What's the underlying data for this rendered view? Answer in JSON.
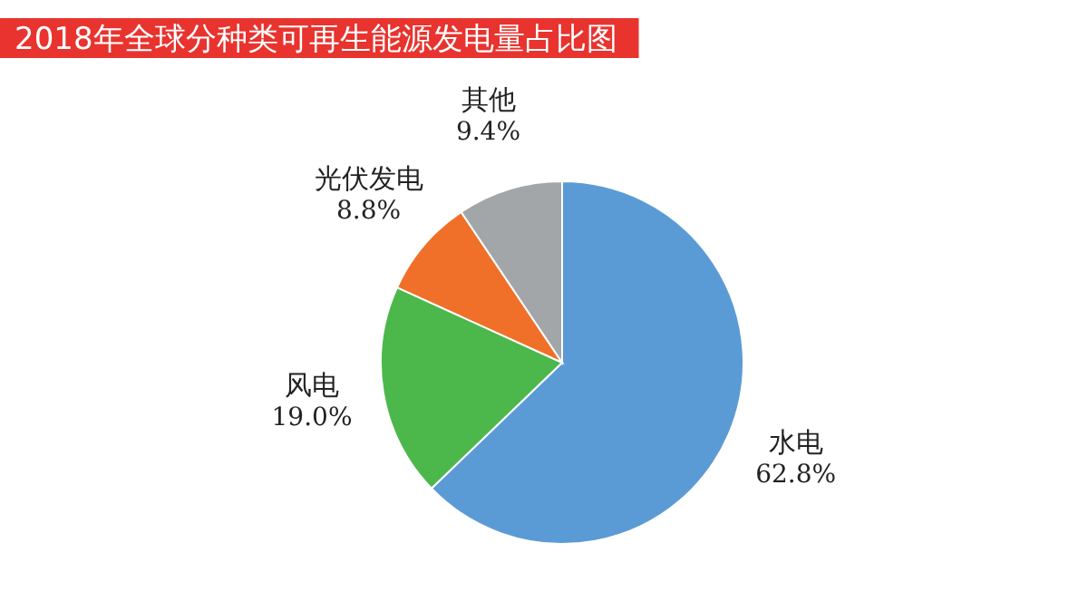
{
  "chart_data": {
    "type": "pie",
    "title": "2018年全球分种类可再生能源发电量占比图",
    "categories": [
      "水电",
      "风电",
      "光伏发电",
      "其他"
    ],
    "values": [
      62.8,
      19.0,
      8.8,
      9.4
    ],
    "value_labels": [
      "62.8%",
      "19.0%",
      "8.8%",
      "9.4%"
    ],
    "colors": [
      "#5b9bd5",
      "#4cb84c",
      "#f0702a",
      "#a3a6a9"
    ]
  }
}
